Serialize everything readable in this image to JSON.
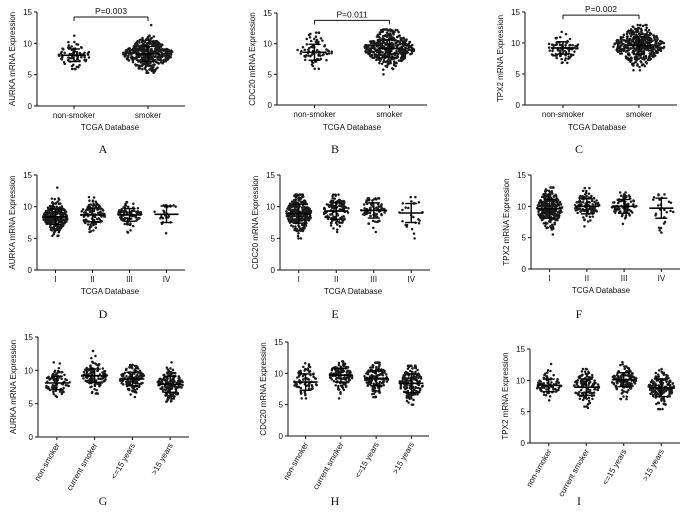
{
  "figure": {
    "colors": {
      "axis": "#111111",
      "point": "#1a1a1a",
      "bar": "#000000",
      "background": "#ffffff"
    }
  },
  "chart_data": [
    {
      "id": "A",
      "type": "scatter",
      "panel_label": "A",
      "ylabel": "AURKA mRNA Expression",
      "xlabel": "TCGA Database",
      "ylim": [
        0,
        15
      ],
      "yticks": [
        0,
        5,
        10,
        15
      ],
      "categories": [
        "non-smoker",
        "smoker"
      ],
      "series": [
        {
          "name": "non-smoker",
          "n": 75,
          "mean": 8.1,
          "sd": 1.0,
          "min": 5.9,
          "max": 11.2
        },
        {
          "name": "smoker",
          "n": 430,
          "mean": 8.3,
          "sd": 1.2,
          "min": 5.3,
          "max": 12.9
        }
      ],
      "annotation": {
        "text": "P=0.003",
        "from": 0,
        "to": 1,
        "y": 14.2
      }
    },
    {
      "id": "B",
      "type": "scatter",
      "panel_label": "B",
      "ylabel": "CDC20 mRNA Expression",
      "xlabel": "TCGA Database",
      "ylim": [
        0,
        15
      ],
      "yticks": [
        0,
        5,
        10,
        15
      ],
      "categories": [
        "non-smoker",
        "smoker"
      ],
      "series": [
        {
          "name": "non-smoker",
          "n": 75,
          "mean": 8.6,
          "sd": 1.3,
          "min": 5.9,
          "max": 11.8
        },
        {
          "name": "smoker",
          "n": 430,
          "mean": 9.2,
          "sd": 1.4,
          "min": 5.0,
          "max": 12.3
        }
      ],
      "annotation": {
        "text": "P=0.011",
        "from": 0,
        "to": 1,
        "y": 13.8
      }
    },
    {
      "id": "C",
      "type": "scatter",
      "panel_label": "C",
      "ylabel": "TPX2 mRNA Expression",
      "xlabel": "TCGA Database",
      "ylim": [
        0,
        15
      ],
      "yticks": [
        0,
        5,
        10,
        15
      ],
      "categories": [
        "non-smoker",
        "smoker"
      ],
      "series": [
        {
          "name": "non-smoker",
          "n": 75,
          "mean": 9.2,
          "sd": 1.0,
          "min": 6.8,
          "max": 11.8
        },
        {
          "name": "smoker",
          "n": 430,
          "mean": 9.6,
          "sd": 1.4,
          "min": 5.6,
          "max": 12.9
        }
      ],
      "annotation": {
        "text": "P=0.002",
        "from": 0,
        "to": 1,
        "y": 14.5
      }
    },
    {
      "id": "D",
      "type": "scatter",
      "panel_label": "D",
      "ylabel": "AURKA mRNA Expression",
      "xlabel": "TCGA Database",
      "ylim": [
        0,
        15
      ],
      "yticks": [
        0,
        5,
        10,
        15
      ],
      "categories": [
        "I",
        "II",
        "III",
        "IV"
      ],
      "series": [
        {
          "name": "I",
          "n": 270,
          "mean": 8.4,
          "sd": 1.2,
          "min": 5.4,
          "max": 13.0
        },
        {
          "name": "II",
          "n": 120,
          "mean": 8.7,
          "sd": 1.1,
          "min": 6.0,
          "max": 11.5
        },
        {
          "name": "III",
          "n": 85,
          "mean": 8.7,
          "sd": 1.0,
          "min": 5.9,
          "max": 10.7
        },
        {
          "name": "IV",
          "n": 25,
          "mean": 8.8,
          "sd": 1.3,
          "min": 5.8,
          "max": 10.2
        }
      ]
    },
    {
      "id": "E",
      "type": "scatter",
      "panel_label": "E",
      "ylabel": "CDC20 mRNA Expression",
      "xlabel": "TCGA Database",
      "ylim": [
        0,
        15
      ],
      "yticks": [
        0,
        5,
        10,
        15
      ],
      "categories": [
        "I",
        "II",
        "III",
        "IV"
      ],
      "series": [
        {
          "name": "I",
          "n": 270,
          "mean": 8.9,
          "sd": 1.5,
          "min": 5.0,
          "max": 11.9
        },
        {
          "name": "II",
          "n": 120,
          "mean": 9.3,
          "sd": 1.3,
          "min": 6.0,
          "max": 11.9
        },
        {
          "name": "III",
          "n": 85,
          "mean": 9.4,
          "sd": 1.2,
          "min": 6.0,
          "max": 11.3
        },
        {
          "name": "IV",
          "n": 25,
          "mean": 9.0,
          "sd": 1.5,
          "min": 5.0,
          "max": 11.5
        }
      ]
    },
    {
      "id": "F",
      "type": "scatter",
      "panel_label": "F",
      "ylabel": "TPX2 mRNA Expression",
      "xlabel": "TCGA Database",
      "ylim": [
        0,
        15
      ],
      "yticks": [
        0,
        5,
        10,
        15
      ],
      "categories": [
        "I",
        "II",
        "III",
        "IV"
      ],
      "series": [
        {
          "name": "I",
          "n": 270,
          "mean": 9.6,
          "sd": 1.5,
          "min": 5.5,
          "max": 13.0
        },
        {
          "name": "II",
          "n": 120,
          "mean": 10.0,
          "sd": 1.2,
          "min": 6.8,
          "max": 12.9
        },
        {
          "name": "III",
          "n": 85,
          "mean": 10.0,
          "sd": 1.1,
          "min": 7.2,
          "max": 12.2
        },
        {
          "name": "IV",
          "n": 25,
          "mean": 9.7,
          "sd": 1.6,
          "min": 5.8,
          "max": 11.9
        }
      ]
    },
    {
      "id": "G",
      "type": "scatter",
      "panel_label": "G",
      "ylabel": "AURKA mRNA Expression",
      "xlabel": "",
      "ylim": [
        0,
        15
      ],
      "yticks": [
        0,
        5,
        10,
        15
      ],
      "categories": [
        "non-smoker",
        "current smoker",
        "<=15 years",
        ">15 years"
      ],
      "series": [
        {
          "name": "non-smoker",
          "n": 75,
          "mean": 8.1,
          "sd": 1.0,
          "min": 6.0,
          "max": 11.2
        },
        {
          "name": "current smoker",
          "n": 120,
          "mean": 9.2,
          "sd": 1.0,
          "min": 6.5,
          "max": 12.9
        },
        {
          "name": "<=15 years",
          "n": 140,
          "mean": 8.7,
          "sd": 1.0,
          "min": 6.0,
          "max": 10.8
        },
        {
          "name": ">15 years",
          "n": 170,
          "mean": 7.9,
          "sd": 1.2,
          "min": 5.3,
          "max": 11.2
        }
      ]
    },
    {
      "id": "H",
      "type": "scatter",
      "panel_label": "H",
      "ylabel": "CDC20 mRNA Expression",
      "xlabel": "",
      "ylim": [
        0,
        15
      ],
      "yticks": [
        0,
        5,
        10,
        15
      ],
      "categories": [
        "non-smoker",
        "current smoker",
        "<=15 years",
        ">15 years"
      ],
      "series": [
        {
          "name": "non-smoker",
          "n": 75,
          "mean": 8.6,
          "sd": 1.3,
          "min": 6.0,
          "max": 11.6
        },
        {
          "name": "current smoker",
          "n": 120,
          "mean": 9.7,
          "sd": 1.1,
          "min": 6.0,
          "max": 11.9
        },
        {
          "name": "<=15 years",
          "n": 140,
          "mean": 9.2,
          "sd": 1.2,
          "min": 6.2,
          "max": 11.7
        },
        {
          "name": ">15 years",
          "n": 170,
          "mean": 8.4,
          "sd": 1.5,
          "min": 5.0,
          "max": 11.2
        }
      ]
    },
    {
      "id": "I",
      "type": "scatter",
      "panel_label": "I",
      "ylabel": "TPX2 mRNA Expression",
      "xlabel": "",
      "ylim": [
        0,
        15
      ],
      "yticks": [
        0,
        5,
        10,
        15
      ],
      "categories": [
        "non-smoker",
        "current smoker",
        "<=15 years",
        ">15 years"
      ],
      "series": [
        {
          "name": "non-smoker",
          "n": 75,
          "mean": 9.2,
          "sd": 1.0,
          "min": 6.8,
          "max": 12.6
        },
        {
          "name": "current smoker",
          "n": 120,
          "mean": 8.9,
          "sd": 1.3,
          "min": 5.6,
          "max": 11.8
        },
        {
          "name": "<=15 years",
          "n": 140,
          "mean": 10.1,
          "sd": 1.1,
          "min": 7.0,
          "max": 12.9
        },
        {
          "name": ">15 years",
          "n": 170,
          "mean": 8.8,
          "sd": 1.4,
          "min": 5.4,
          "max": 11.8
        }
      ]
    }
  ]
}
